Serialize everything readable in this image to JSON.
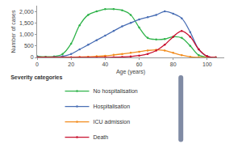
{
  "chart_data": {
    "type": "line",
    "x_label": "Age (years)",
    "y_label": "Number of cases",
    "legend_title": "Severity categories",
    "x": [
      0,
      5,
      10,
      15,
      20,
      25,
      30,
      35,
      40,
      45,
      50,
      55,
      60,
      65,
      70,
      75,
      80,
      85,
      90,
      95,
      100,
      105
    ],
    "series": [
      {
        "name": "No hospitalisation",
        "color": "#2fb34a",
        "values": [
          50,
          30,
          40,
          150,
          600,
          1400,
          1850,
          2000,
          2100,
          2100,
          2050,
          1850,
          1300,
          850,
          780,
          800,
          900,
          850,
          500,
          100,
          10,
          0
        ]
      },
      {
        "name": "Hospitalisation",
        "color": "#4a6fb5",
        "values": [
          30,
          10,
          20,
          50,
          150,
          350,
          550,
          750,
          950,
          1150,
          1350,
          1500,
          1650,
          1750,
          1850,
          2000,
          1900,
          1700,
          1100,
          350,
          50,
          0
        ]
      },
      {
        "name": "ICU admission",
        "color": "#f28c1e",
        "values": [
          0,
          0,
          0,
          0,
          10,
          20,
          30,
          50,
          70,
          110,
          150,
          200,
          250,
          300,
          330,
          300,
          200,
          100,
          30,
          5,
          0,
          0
        ]
      },
      {
        "name": "Death",
        "color": "#c8102e",
        "values": [
          0,
          0,
          0,
          0,
          0,
          0,
          0,
          0,
          5,
          10,
          20,
          40,
          80,
          150,
          300,
          550,
          900,
          1150,
          900,
          350,
          50,
          0
        ]
      }
    ],
    "xlim": [
      0,
      110
    ],
    "xticks": [
      0,
      20,
      40,
      60,
      80,
      100
    ],
    "ylim": [
      0,
      2250
    ],
    "yticks": [
      0,
      500,
      {
        "value": 1000,
        "label": "1,000"
      },
      {
        "value": 1500,
        "label": "1,500"
      },
      {
        "value": 2000,
        "label": "2,000"
      }
    ],
    "grid": false,
    "legend": "bottom",
    "marker": "circle",
    "line_style": "solid"
  }
}
